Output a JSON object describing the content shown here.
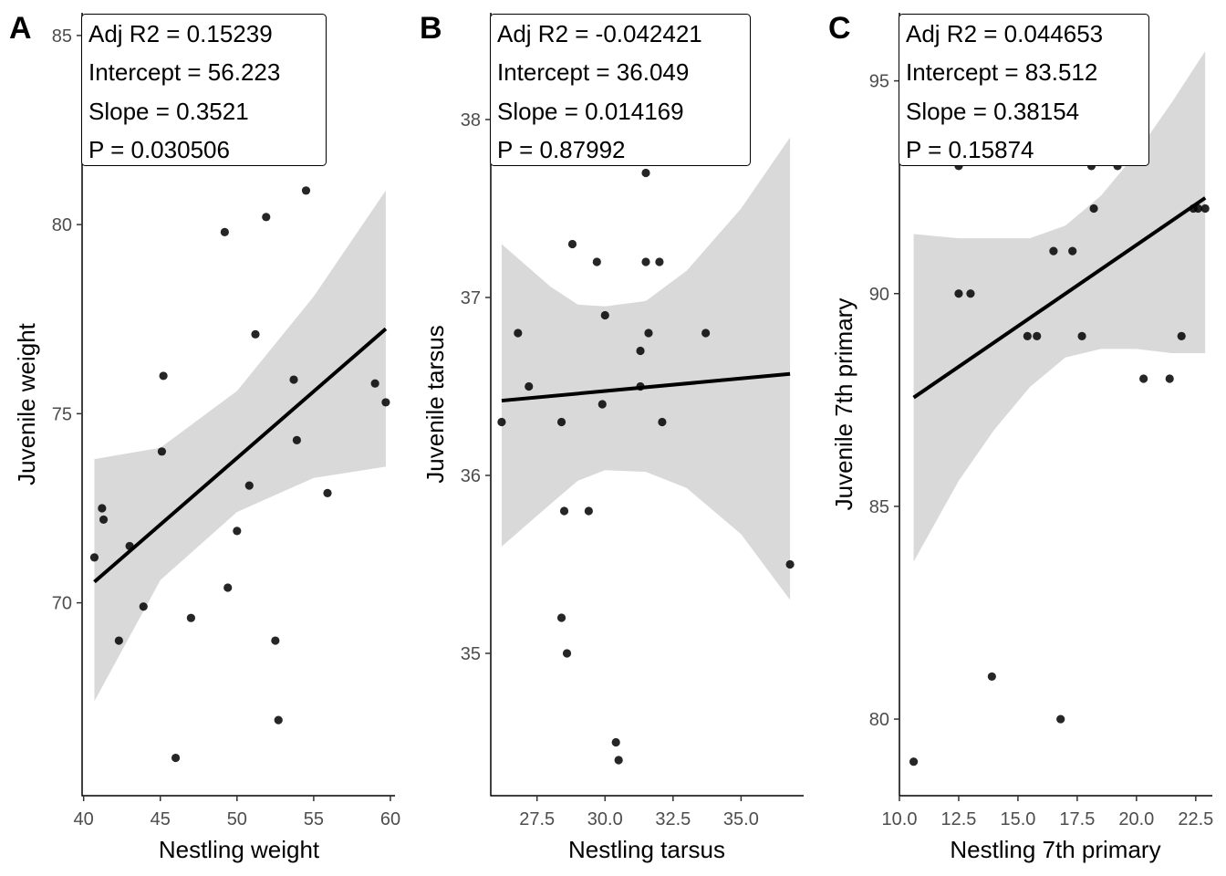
{
  "chart_data": [
    {
      "type": "scatter",
      "panel": "A",
      "xlabel": "Nestling weight",
      "ylabel": "Juvenile weight",
      "xlim": [
        39.9,
        60.3
      ],
      "ylim": [
        64.9,
        85.6
      ],
      "x_ticks": [
        40,
        45,
        50,
        55,
        60
      ],
      "x_tick_labels": [
        "40",
        "45",
        "50",
        "55",
        "60"
      ],
      "y_ticks": [
        70,
        75,
        80,
        85
      ],
      "y_tick_labels": [
        "70",
        "75",
        "80",
        "85"
      ],
      "stats": [
        "Adj R2 =  0.15239",
        "Intercept = 56.223",
        "Slope = 0.3521",
        "P = 0.030506"
      ],
      "fit": {
        "intercept": 56.223,
        "slope": 0.3521,
        "x_range": [
          40.7,
          59.7
        ]
      },
      "confidence_band": {
        "x": [
          40.7,
          45,
          50,
          55,
          59.7
        ],
        "lower": [
          67.4,
          70.6,
          72.4,
          73.3,
          73.6
        ],
        "upper": [
          73.8,
          74.1,
          75.6,
          78.1,
          80.9
        ]
      },
      "points": [
        {
          "x": 40.7,
          "y": 71.2
        },
        {
          "x": 41.2,
          "y": 72.5
        },
        {
          "x": 41.3,
          "y": 72.2
        },
        {
          "x": 42.3,
          "y": 69.0
        },
        {
          "x": 43.0,
          "y": 71.5
        },
        {
          "x": 43.9,
          "y": 69.9
        },
        {
          "x": 45.1,
          "y": 74.0
        },
        {
          "x": 45.2,
          "y": 76.0
        },
        {
          "x": 46.0,
          "y": 65.9
        },
        {
          "x": 47.0,
          "y": 69.6
        },
        {
          "x": 49.2,
          "y": 79.8
        },
        {
          "x": 49.4,
          "y": 70.4
        },
        {
          "x": 50.0,
          "y": 71.9
        },
        {
          "x": 50.8,
          "y": 73.1
        },
        {
          "x": 51.2,
          "y": 77.1
        },
        {
          "x": 51.9,
          "y": 80.2
        },
        {
          "x": 52.5,
          "y": 69.0
        },
        {
          "x": 52.7,
          "y": 66.9
        },
        {
          "x": 53.7,
          "y": 75.9
        },
        {
          "x": 53.9,
          "y": 74.3
        },
        {
          "x": 54.5,
          "y": 80.9
        },
        {
          "x": 55.9,
          "y": 72.9
        },
        {
          "x": 59.0,
          "y": 75.8
        },
        {
          "x": 59.7,
          "y": 75.3
        }
      ]
    },
    {
      "type": "scatter",
      "panel": "B",
      "xlabel": "Nestling tarsus",
      "ylabel": "Juvenile tarsus",
      "xlim": [
        25.8,
        37.3
      ],
      "ylim": [
        34.2,
        38.6
      ],
      "x_ticks": [
        27.5,
        30.0,
        32.5,
        35.0
      ],
      "x_tick_labels": [
        "27.5",
        "30.0",
        "32.5",
        "35.0"
      ],
      "y_ticks": [
        35,
        36,
        37,
        38
      ],
      "y_tick_labels": [
        "35",
        "36",
        "37",
        "38"
      ],
      "stats": [
        "Adj R2 =  -0.042421",
        "Intercept = 36.049",
        "Slope = 0.014169",
        "P = 0.87992"
      ],
      "fit": {
        "intercept": 36.049,
        "slope": 0.014169,
        "x_range": [
          26.2,
          36.8
        ]
      },
      "confidence_band": {
        "x": [
          26.2,
          28.0,
          29.0,
          30.0,
          31.5,
          33.0,
          35.0,
          36.8
        ],
        "lower": [
          35.6,
          35.84,
          35.97,
          36.03,
          36.02,
          35.93,
          35.67,
          35.3
        ],
        "upper": [
          37.3,
          37.06,
          36.96,
          36.95,
          36.98,
          37.15,
          37.5,
          37.9
        ]
      },
      "points": [
        {
          "x": 26.2,
          "y": 36.3
        },
        {
          "x": 26.8,
          "y": 36.8
        },
        {
          "x": 27.2,
          "y": 36.5
        },
        {
          "x": 28.4,
          "y": 36.3
        },
        {
          "x": 28.4,
          "y": 35.2
        },
        {
          "x": 28.5,
          "y": 35.8
        },
        {
          "x": 28.6,
          "y": 35.0
        },
        {
          "x": 28.8,
          "y": 37.3
        },
        {
          "x": 29.4,
          "y": 35.8
        },
        {
          "x": 29.7,
          "y": 37.2
        },
        {
          "x": 29.9,
          "y": 36.4
        },
        {
          "x": 30.0,
          "y": 36.9
        },
        {
          "x": 30.4,
          "y": 34.5
        },
        {
          "x": 30.5,
          "y": 34.4
        },
        {
          "x": 31.3,
          "y": 36.7
        },
        {
          "x": 31.3,
          "y": 36.5
        },
        {
          "x": 31.5,
          "y": 37.7
        },
        {
          "x": 31.5,
          "y": 37.2
        },
        {
          "x": 31.6,
          "y": 36.8
        },
        {
          "x": 32.0,
          "y": 37.2
        },
        {
          "x": 32.1,
          "y": 36.3
        },
        {
          "x": 33.7,
          "y": 36.8
        },
        {
          "x": 36.8,
          "y": 35.5
        }
      ]
    },
    {
      "type": "scatter",
      "panel": "C",
      "xlabel": "Nestling 7th primary",
      "ylabel": "Juvenile 7th primary",
      "xlim": [
        10.0,
        23.2
      ],
      "ylim": [
        78.2,
        96.6
      ],
      "x_ticks": [
        10.0,
        12.5,
        15.0,
        17.5,
        20.0,
        22.5
      ],
      "x_tick_labels": [
        "10.0",
        "12.5",
        "15.0",
        "17.5",
        "20.0",
        "22.5"
      ],
      "y_ticks": [
        80,
        85,
        90,
        95
      ],
      "y_tick_labels": [
        "80",
        "85",
        "90",
        "95"
      ],
      "stats": [
        "Adj R2 =  0.044653",
        "Intercept = 83.512",
        "Slope = 0.38154",
        "P = 0.15874"
      ],
      "fit": {
        "intercept": 83.512,
        "slope": 0.38154,
        "x_range": [
          10.6,
          22.9
        ]
      },
      "confidence_band": {
        "x": [
          10.6,
          12.5,
          14.0,
          15.5,
          17.0,
          18.5,
          20.0,
          21.5,
          22.9
        ],
        "lower": [
          83.7,
          85.6,
          86.8,
          87.8,
          88.5,
          88.7,
          88.7,
          88.6,
          88.6
        ],
        "upper": [
          91.4,
          91.3,
          91.3,
          91.3,
          91.6,
          92.3,
          93.3,
          94.5,
          95.7
        ]
      },
      "points": [
        {
          "x": 10.6,
          "y": 79.0
        },
        {
          "x": 12.5,
          "y": 90.0
        },
        {
          "x": 12.5,
          "y": 93.0
        },
        {
          "x": 13.0,
          "y": 90.0
        },
        {
          "x": 13.9,
          "y": 81.0
        },
        {
          "x": 15.4,
          "y": 89.0
        },
        {
          "x": 15.8,
          "y": 89.0
        },
        {
          "x": 16.5,
          "y": 91.0
        },
        {
          "x": 16.8,
          "y": 80.0
        },
        {
          "x": 17.3,
          "y": 91.0
        },
        {
          "x": 17.7,
          "y": 89.0
        },
        {
          "x": 18.1,
          "y": 93.0
        },
        {
          "x": 18.2,
          "y": 92.0
        },
        {
          "x": 19.2,
          "y": 93.0
        },
        {
          "x": 20.3,
          "y": 88.0
        },
        {
          "x": 21.4,
          "y": 88.0
        },
        {
          "x": 21.9,
          "y": 89.0
        },
        {
          "x": 22.4,
          "y": 92.0
        },
        {
          "x": 22.6,
          "y": 92.0
        },
        {
          "x": 22.9,
          "y": 92.0
        }
      ]
    }
  ],
  "style": {
    "band_color": "#d9d9d9",
    "line_color": "#000000",
    "point_color": "#000000"
  }
}
